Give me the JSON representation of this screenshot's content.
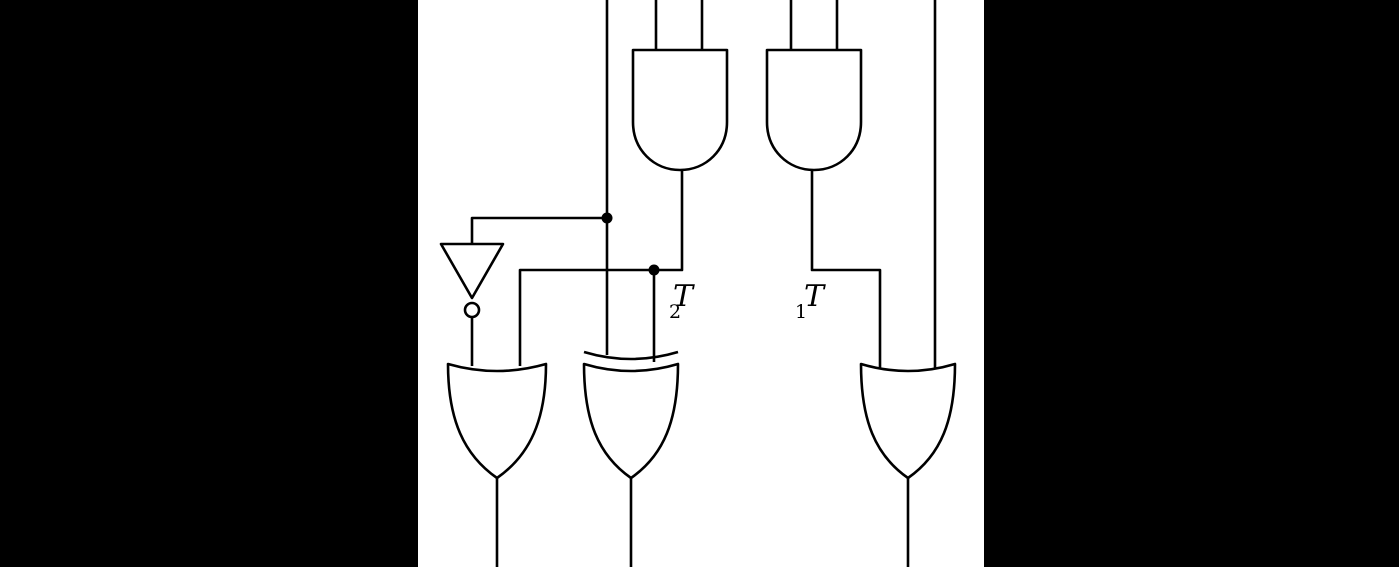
{
  "diagram": {
    "background_color": "#000000",
    "panel_color": "#ffffff",
    "line_color": "#000000",
    "gates": [
      {
        "id": "and-gate-left",
        "type": "AND"
      },
      {
        "id": "and-gate-right",
        "type": "AND"
      },
      {
        "id": "not-gate",
        "type": "NOT"
      },
      {
        "id": "or-gate-left",
        "type": "OR"
      },
      {
        "id": "xor-gate",
        "type": "XOR"
      },
      {
        "id": "or-gate-right",
        "type": "OR"
      }
    ],
    "labels": {
      "t2": {
        "main": "T",
        "sub": "2"
      },
      "t1": {
        "main": "T",
        "sub": "1"
      }
    }
  }
}
